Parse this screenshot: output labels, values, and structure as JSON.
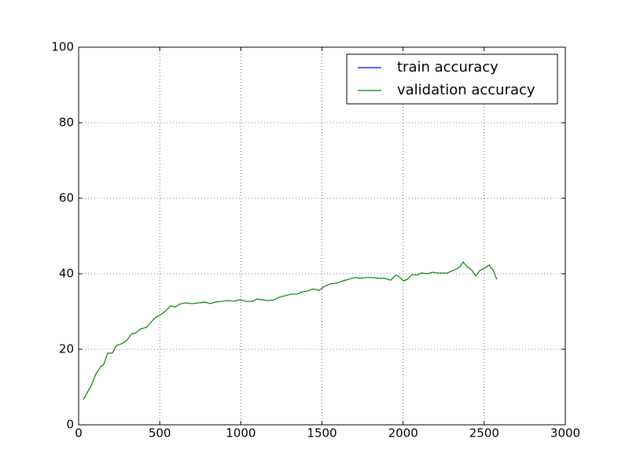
{
  "chart_data": {
    "type": "line",
    "x": [
      29,
      78,
      107,
      136,
      155,
      179,
      208,
      233,
      267,
      296,
      325,
      354,
      383,
      417,
      441,
      470,
      499,
      528,
      567,
      596,
      625,
      659,
      698,
      742,
      780,
      809,
      843,
      882,
      921,
      955,
      994,
      1032,
      1071,
      1100,
      1134,
      1168,
      1207,
      1236,
      1275,
      1309,
      1347,
      1376,
      1410,
      1444,
      1483,
      1517,
      1551,
      1590,
      1628,
      1662,
      1701,
      1735,
      1774,
      1813,
      1846,
      1885,
      1924,
      1953,
      1977,
      2002,
      2026,
      2055,
      2084,
      2113,
      2152,
      2181,
      2210,
      2239,
      2273,
      2302,
      2331,
      2351,
      2370,
      2394,
      2423,
      2447,
      2472,
      2501,
      2530,
      2554,
      2578
    ],
    "series": [
      {
        "name": "train accuracy",
        "color": "#0000ff",
        "values": [
          null,
          null,
          null,
          null,
          null,
          null,
          null,
          null,
          null,
          null,
          null,
          null,
          null,
          null,
          null,
          null,
          null,
          null,
          null,
          null,
          null,
          null,
          null,
          null,
          null,
          null,
          null,
          null,
          null,
          null,
          null,
          null,
          null,
          null,
          null,
          null,
          null,
          null,
          null,
          null,
          null,
          null,
          null,
          null,
          null,
          null,
          null,
          null,
          null,
          null,
          null,
          null,
          null,
          null,
          null,
          null,
          null,
          null,
          null,
          null,
          null,
          null,
          null,
          null,
          null,
          null,
          null,
          null,
          null,
          null,
          null,
          null,
          null,
          null,
          null,
          null,
          null,
          null,
          null,
          null,
          null
        ]
      },
      {
        "name": "validation accuracy",
        "color": "#008000",
        "values": [
          6.7,
          10.4,
          13.5,
          15.4,
          16,
          19,
          19,
          21,
          21.5,
          22.3,
          24,
          24.4,
          25.4,
          25.8,
          26.9,
          28.3,
          29,
          29.8,
          31.5,
          31.2,
          32,
          32.3,
          32.1,
          32.3,
          32.5,
          32.1,
          32.5,
          32.7,
          32.9,
          32.7,
          33.1,
          32.7,
          32.7,
          33.3,
          33.1,
          32.9,
          33.1,
          33.8,
          34.2,
          34.6,
          34.6,
          35.2,
          35.4,
          36,
          35.6,
          36.7,
          37.3,
          37.5,
          38.1,
          38.5,
          39,
          38.8,
          39,
          39,
          38.8,
          38.8,
          38.3,
          39.6,
          39.2,
          38.1,
          38.5,
          39.8,
          39.6,
          40.2,
          40,
          40.4,
          40.2,
          40.2,
          40.2,
          40.8,
          41.3,
          41.9,
          43.1,
          41.9,
          41,
          39.4,
          40.8,
          41.5,
          42.3,
          41,
          38.5
        ]
      }
    ],
    "xlim": [
      0,
      3000
    ],
    "xticks": [
      0,
      500,
      1000,
      1500,
      2000,
      2500,
      3000
    ],
    "ylim": [
      0,
      100
    ],
    "yticks": [
      0,
      20,
      40,
      60,
      80,
      100
    ],
    "grid": true,
    "legend": "upper right"
  }
}
